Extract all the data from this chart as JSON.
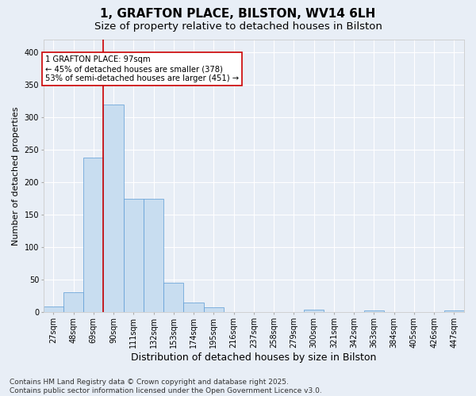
{
  "title": "1, GRAFTON PLACE, BILSTON, WV14 6LH",
  "subtitle": "Size of property relative to detached houses in Bilston",
  "xlabel": "Distribution of detached houses by size in Bilston",
  "ylabel": "Number of detached properties",
  "bin_labels": [
    "27sqm",
    "48sqm",
    "69sqm",
    "90sqm",
    "111sqm",
    "132sqm",
    "153sqm",
    "174sqm",
    "195sqm",
    "216sqm",
    "237sqm",
    "258sqm",
    "279sqm",
    "300sqm",
    "321sqm",
    "342sqm",
    "363sqm",
    "384sqm",
    "405sqm",
    "426sqm",
    "447sqm"
  ],
  "bar_heights": [
    8,
    31,
    238,
    320,
    175,
    175,
    45,
    15,
    7,
    0,
    0,
    0,
    0,
    4,
    0,
    0,
    2,
    0,
    0,
    0,
    2
  ],
  "bar_color": "#c8ddf0",
  "bar_edge_color": "#5b9bd5",
  "vline_x": 3.0,
  "vline_color": "#cc0000",
  "annotation_text": "1 GRAFTON PLACE: 97sqm\n← 45% of detached houses are smaller (378)\n53% of semi-detached houses are larger (451) →",
  "ylim": [
    0,
    420
  ],
  "yticks": [
    0,
    50,
    100,
    150,
    200,
    250,
    300,
    350,
    400
  ],
  "background_color": "#e8eef6",
  "plot_background": "#e8eef6",
  "grid_color": "#ffffff",
  "footer": "Contains HM Land Registry data © Crown copyright and database right 2025.\nContains public sector information licensed under the Open Government Licence v3.0.",
  "title_fontsize": 11,
  "subtitle_fontsize": 9.5,
  "xlabel_fontsize": 9,
  "ylabel_fontsize": 8,
  "tick_fontsize": 7,
  "footer_fontsize": 6.5
}
